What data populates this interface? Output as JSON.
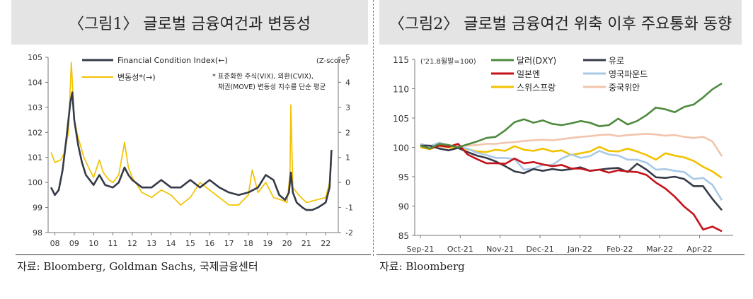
{
  "panel1": {
    "title": "〈그림1〉 글로벌 금융여건과 변동성",
    "source": "자료: Bloomberg, Goldman Sachs,  국제금융센터"
  },
  "panel2": {
    "title": "〈그림2〉 글로벌 금융여건 위축 이후 주요통화 동향",
    "source": "자료: Bloomberg"
  },
  "chart_data": [
    {
      "type": "line",
      "series": [
        {
          "name": "Financial Condition Index(←)",
          "color": "#353b48",
          "axis": "left",
          "x": [
            2007.8,
            2008.0,
            2008.2,
            2008.4,
            2008.6,
            2008.8,
            2008.9,
            2009.0,
            2009.2,
            2009.4,
            2009.6,
            2009.8,
            2010.0,
            2010.3,
            2010.6,
            2011.0,
            2011.3,
            2011.6,
            2011.8,
            2012.0,
            2012.5,
            2013.0,
            2013.5,
            2014.0,
            2014.5,
            2015.0,
            2015.5,
            2016.0,
            2016.5,
            2017.0,
            2017.5,
            2018.0,
            2018.5,
            2018.9,
            2019.3,
            2019.6,
            2019.9,
            2020.1,
            2020.2,
            2020.3,
            2020.5,
            2020.8,
            2021.0,
            2021.3,
            2021.6,
            2022.0,
            2022.2,
            2022.3
          ],
          "y": [
            99.8,
            99.5,
            99.7,
            100.5,
            101.8,
            103.2,
            103.6,
            102.5,
            101.5,
            100.8,
            100.3,
            100.1,
            99.9,
            100.3,
            99.9,
            99.8,
            100.0,
            100.6,
            100.3,
            100.1,
            99.8,
            99.8,
            100.1,
            99.8,
            99.8,
            100.1,
            99.8,
            100.1,
            99.8,
            99.6,
            99.5,
            99.6,
            99.8,
            100.3,
            100.1,
            99.5,
            99.3,
            99.6,
            100.4,
            99.6,
            99.2,
            99.0,
            98.9,
            98.9,
            99.0,
            99.2,
            99.8,
            101.3
          ]
        },
        {
          "name": "변동성*(→)",
          "color": "#f2c200",
          "axis": "right",
          "x": [
            2007.8,
            2008.0,
            2008.3,
            2008.5,
            2008.7,
            2008.85,
            2009.0,
            2009.2,
            2009.5,
            2009.8,
            2010.0,
            2010.3,
            2010.5,
            2010.8,
            2011.0,
            2011.3,
            2011.6,
            2011.8,
            2012.0,
            2012.5,
            2013.0,
            2013.5,
            2014.0,
            2014.5,
            2015.0,
            2015.5,
            2016.0,
            2016.5,
            2017.0,
            2017.5,
            2018.0,
            2018.2,
            2018.5,
            2018.9,
            2019.3,
            2019.7,
            2020.0,
            2020.15,
            2020.2,
            2020.3,
            2020.6,
            2021.0,
            2021.5,
            2022.0,
            2022.2,
            2022.3
          ],
          "y": [
            1.2,
            0.8,
            0.9,
            1.2,
            2.0,
            4.8,
            2.5,
            1.8,
            1.0,
            0.5,
            0.2,
            0.9,
            0.4,
            0.1,
            0.0,
            0.3,
            1.6,
            0.6,
            0.2,
            -0.4,
            -0.6,
            -0.3,
            -0.5,
            -0.9,
            -0.6,
            0.0,
            -0.3,
            -0.6,
            -0.9,
            -0.9,
            -0.5,
            0.5,
            -0.4,
            0.0,
            -0.6,
            -0.7,
            -0.8,
            0.3,
            3.1,
            -0.2,
            -0.5,
            -0.8,
            -0.7,
            -0.6,
            0.0,
            0.8
          ]
        }
      ],
      "x_tick_labels": [
        "08",
        "09",
        "10",
        "11",
        "12",
        "13",
        "14",
        "15",
        "16",
        "17",
        "18",
        "19",
        "20",
        "21",
        "22"
      ],
      "ylim_left": [
        98,
        105
      ],
      "ylim_right": [
        -2,
        5
      ],
      "right_axis_label": "(Z-score)",
      "annotation": [
        "* 표준화한 주식(VIX), 외환(CVIX),",
        "채권(MOVE) 변동성 지수를 단순 평균"
      ],
      "legend_position": "top",
      "grid": false
    },
    {
      "type": "line",
      "series": [
        {
          "name": "달러(DXY)",
          "color": "#4e8a3e",
          "y": [
            100.3,
            99.8,
            100.6,
            100.4,
            100.0,
            100.5,
            101.0,
            101.6,
            101.8,
            102.9,
            104.3,
            104.8,
            104.2,
            104.6,
            104.0,
            103.8,
            104.1,
            104.5,
            104.2,
            103.6,
            103.8,
            104.9,
            103.9,
            104.5,
            105.5,
            106.8,
            106.5,
            106.0,
            106.9,
            107.3,
            108.5,
            109.9,
            110.9
          ]
        },
        {
          "name": "유로",
          "color": "#353b48",
          "y": [
            100.3,
            100.3,
            99.8,
            99.5,
            99.9,
            99.2,
            98.6,
            98.2,
            97.6,
            96.8,
            95.9,
            95.6,
            96.3,
            96.0,
            96.3,
            96.1,
            96.3,
            96.6,
            96.0,
            96.2,
            96.4,
            96.5,
            95.8,
            97.2,
            96.2,
            94.9,
            94.8,
            95.0,
            94.6,
            93.4,
            93.4,
            91.2,
            89.3
          ]
        },
        {
          "name": "일본엔",
          "color": "#c4121a",
          "y": [
            100.3,
            99.8,
            100.3,
            100.1,
            100.6,
            98.8,
            98.0,
            97.3,
            97.3,
            97.2,
            98.1,
            97.3,
            97.5,
            97.1,
            96.8,
            97.0,
            96.4,
            96.4,
            96.0,
            96.2,
            95.7,
            96.1,
            95.9,
            95.8,
            95.3,
            94.0,
            93.0,
            91.6,
            89.9,
            88.6,
            86.0,
            86.5,
            85.7
          ]
        },
        {
          "name": "영국파운드",
          "color": "#a9c9e6",
          "y": [
            100.6,
            100.2,
            100.8,
            100.4,
            100.0,
            99.8,
            99.1,
            98.7,
            98.2,
            98.2,
            98.0,
            96.2,
            96.4,
            97.0,
            97.0,
            98.1,
            98.8,
            98.2,
            98.5,
            99.4,
            98.8,
            98.6,
            97.9,
            97.9,
            97.4,
            96.2,
            96.3,
            96.0,
            95.8,
            94.6,
            94.8,
            93.6,
            91.0
          ]
        },
        {
          "name": "스위스프랑",
          "color": "#f2c200",
          "y": [
            100.0,
            99.7,
            100.3,
            100.0,
            99.9,
            99.7,
            99.3,
            99.2,
            99.6,
            99.4,
            100.2,
            99.6,
            99.4,
            99.8,
            99.3,
            99.5,
            98.7,
            99.0,
            99.3,
            100.1,
            99.4,
            99.3,
            99.8,
            99.3,
            98.7,
            97.9,
            99.0,
            98.6,
            98.3,
            97.7,
            96.7,
            95.9,
            94.8
          ]
        },
        {
          "name": "중국위안",
          "color": "#f2c4ad",
          "y": [
            100.0,
            100.2,
            100.1,
            100.1,
            100.2,
            100.3,
            100.4,
            100.6,
            100.6,
            100.8,
            100.9,
            101.1,
            101.2,
            101.3,
            101.2,
            101.4,
            101.6,
            101.8,
            101.9,
            102.1,
            102.2,
            101.9,
            102.1,
            102.2,
            102.3,
            102.2,
            102.0,
            102.1,
            101.8,
            101.6,
            101.8,
            101.0,
            98.5
          ]
        }
      ],
      "x_tick_labels": [
        "Sep-21",
        "Oct-21",
        "Nov-21",
        "Dec-21",
        "Jan-22",
        "Feb-22",
        "Mar-22",
        "Apr-22"
      ],
      "ylim": [
        85,
        115
      ],
      "y_ticks": [
        85,
        90,
        95,
        100,
        105,
        110,
        115
      ],
      "axis_note": "('21.8월말=100)",
      "legend_position": "top",
      "grid": false
    }
  ]
}
